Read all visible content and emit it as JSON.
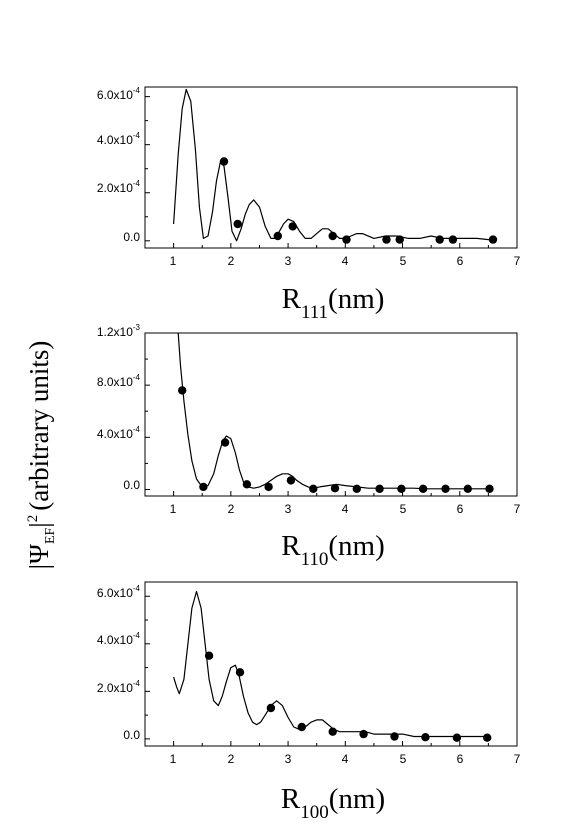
{
  "ylabel": {
    "psi_symbol": "Ψ",
    "subscript": "EF",
    "power": "2",
    "units": "(arbitrary units)"
  },
  "chart_data": [
    {
      "type": "line",
      "panel": "111",
      "xlabel": {
        "main": "R",
        "subscript": "111",
        "units": "(nm)"
      },
      "xlim": [
        0.5,
        7
      ],
      "ylim": [
        -3e-05,
        0.00064
      ],
      "x_ticks": [
        1,
        2,
        3,
        4,
        5,
        6,
        7
      ],
      "x_tick_labels": [
        "1",
        "2",
        "3",
        "4",
        "5",
        "6",
        "7"
      ],
      "y_ticks": [
        0,
        0.0002,
        0.0004,
        0.0006
      ],
      "y_tick_labels": [
        {
          "mantissa": "0.0",
          "exponent": ""
        },
        {
          "mantissa": "2.0x10",
          "exponent": "-4"
        },
        {
          "mantissa": "4.0x10",
          "exponent": "-4"
        },
        {
          "mantissa": "6.0x10",
          "exponent": "-4"
        }
      ],
      "series": [
        {
          "style": "line",
          "x": [
            1.0,
            1.08,
            1.15,
            1.22,
            1.3,
            1.38,
            1.45,
            1.52,
            1.6,
            1.68,
            1.75,
            1.82,
            1.88,
            1.95,
            2.02,
            2.1,
            2.18,
            2.25,
            2.32,
            2.4,
            2.5,
            2.6,
            2.7,
            2.78,
            2.85,
            2.92,
            3.0,
            3.1,
            3.2,
            3.3,
            3.4,
            3.5,
            3.6,
            3.7,
            3.8,
            3.9,
            4.0,
            4.1,
            4.2,
            4.3,
            4.5,
            4.7,
            4.9,
            5.1,
            5.3,
            5.5,
            5.7,
            5.9,
            6.1,
            6.3,
            6.5,
            6.6
          ],
          "y": [
            7e-05,
            0.00036,
            0.00055,
            0.00063,
            0.00058,
            0.00038,
            0.00014,
            1e-05,
            2e-05,
            0.00012,
            0.00025,
            0.00033,
            0.00031,
            0.00018,
            4e-05,
            0.0,
            5e-05,
            0.00011,
            0.00015,
            0.00017,
            0.00014,
            6e-05,
            1e-05,
            1e-05,
            4e-05,
            7e-05,
            9e-05,
            8e-05,
            4e-05,
            1e-05,
            1e-05,
            3e-05,
            5e-05,
            5e-05,
            3e-05,
            1e-05,
            1e-05,
            2e-05,
            3e-05,
            3e-05,
            1e-05,
            2e-05,
            2e-05,
            1e-05,
            1e-05,
            2e-05,
            1e-05,
            1e-05,
            1e-05,
            1e-05,
            5e-06,
            5e-06
          ]
        },
        {
          "style": "markers",
          "x": [
            1.88,
            2.12,
            2.82,
            3.08,
            3.78,
            4.02,
            4.72,
            4.95,
            5.65,
            5.88,
            6.58
          ],
          "y": [
            0.00033,
            7e-05,
            2e-05,
            6e-05,
            2e-05,
            5e-06,
            5e-06,
            5e-06,
            5e-06,
            5e-06,
            5e-06
          ]
        }
      ]
    },
    {
      "type": "line",
      "panel": "110",
      "xlabel": {
        "main": "R",
        "subscript": "110",
        "units": "(nm)"
      },
      "xlim": [
        0.5,
        7
      ],
      "ylim": [
        -5e-05,
        0.0012
      ],
      "x_ticks": [
        1,
        2,
        3,
        4,
        5,
        6,
        7
      ],
      "x_tick_labels": [
        "1",
        "2",
        "3",
        "4",
        "5",
        "6",
        "7"
      ],
      "y_ticks": [
        0,
        0.0004,
        0.0008,
        0.0012
      ],
      "y_tick_labels": [
        {
          "mantissa": "0.0",
          "exponent": ""
        },
        {
          "mantissa": "4.0x10",
          "exponent": "-4"
        },
        {
          "mantissa": "8.0x10",
          "exponent": "-4"
        },
        {
          "mantissa": "1.2x10",
          "exponent": "-3"
        }
      ],
      "series": [
        {
          "style": "line",
          "x": [
            1.08,
            1.12,
            1.18,
            1.25,
            1.32,
            1.4,
            1.5,
            1.6,
            1.7,
            1.78,
            1.85,
            1.92,
            2.0,
            2.08,
            2.15,
            2.22,
            2.3,
            2.4,
            2.5,
            2.6,
            2.7,
            2.8,
            2.9,
            3.0,
            3.08,
            3.15,
            3.25,
            3.35,
            3.45,
            3.55,
            3.7,
            3.85,
            4.0,
            4.2,
            4.4,
            4.6,
            4.8,
            5.0,
            5.2,
            5.4,
            5.6,
            5.8,
            6.0,
            6.2,
            6.4,
            6.55
          ],
          "y": [
            0.0012,
            0.00095,
            0.00068,
            0.00042,
            0.00022,
            8e-05,
            2e-05,
            3e-05,
            0.00012,
            0.00026,
            0.00036,
            0.00041,
            0.00039,
            0.00028,
            0.00015,
            6e-05,
            2e-05,
            1e-05,
            2e-05,
            4e-05,
            7e-05,
            0.0001,
            0.00012,
            0.00012,
            0.0001,
            7e-05,
            4e-05,
            2e-05,
            1e-05,
            2e-05,
            3e-05,
            4e-05,
            3e-05,
            2e-05,
            1e-05,
            1e-05,
            1e-05,
            1e-05,
            1e-05,
            5e-06,
            5e-06,
            5e-06,
            5e-06,
            5e-06,
            5e-06,
            5e-06
          ]
        },
        {
          "style": "markers",
          "x": [
            1.15,
            1.52,
            1.9,
            2.28,
            2.66,
            3.05,
            3.44,
            3.82,
            4.2,
            4.6,
            4.98,
            5.36,
            5.75,
            6.14,
            6.52
          ],
          "y": [
            0.00076,
            2e-05,
            0.00036,
            4e-05,
            2e-05,
            7e-05,
            5e-06,
            1e-05,
            5e-06,
            5e-06,
            5e-06,
            5e-06,
            5e-06,
            5e-06,
            5e-06
          ]
        }
      ]
    },
    {
      "type": "line",
      "panel": "100",
      "xlabel": {
        "main": "R",
        "subscript": "100",
        "units": "(nm)"
      },
      "xlim": [
        0.5,
        7
      ],
      "ylim": [
        -3e-05,
        0.00066
      ],
      "x_ticks": [
        1,
        2,
        3,
        4,
        5,
        6,
        7
      ],
      "x_tick_labels": [
        "1",
        "2",
        "3",
        "4",
        "5",
        "6",
        "7"
      ],
      "y_ticks": [
        0,
        0.0002,
        0.0004,
        0.0006
      ],
      "y_tick_labels": [
        {
          "mantissa": "0.0",
          "exponent": ""
        },
        {
          "mantissa": "2.0x10",
          "exponent": "-4"
        },
        {
          "mantissa": "4.0x10",
          "exponent": "-4"
        },
        {
          "mantissa": "6.0x10",
          "exponent": "-4"
        }
      ],
      "series": [
        {
          "style": "line",
          "x": [
            1.0,
            1.05,
            1.1,
            1.18,
            1.25,
            1.32,
            1.4,
            1.48,
            1.55,
            1.62,
            1.7,
            1.78,
            1.85,
            1.92,
            2.0,
            2.08,
            2.15,
            2.22,
            2.3,
            2.38,
            2.45,
            2.52,
            2.6,
            2.7,
            2.8,
            2.9,
            3.0,
            3.1,
            3.2,
            3.3,
            3.4,
            3.5,
            3.6,
            3.7,
            3.8,
            3.9,
            4.0,
            4.1,
            4.2,
            4.35,
            4.5,
            4.65,
            4.8,
            5.0,
            5.2,
            5.4,
            5.6,
            5.8,
            6.0,
            6.2,
            6.4,
            6.5
          ],
          "y": [
            0.00026,
            0.00022,
            0.00019,
            0.00025,
            0.0004,
            0.00055,
            0.00062,
            0.00055,
            0.0004,
            0.00025,
            0.00016,
            0.00014,
            0.00018,
            0.00024,
            0.0003,
            0.00031,
            0.00026,
            0.00018,
            0.00011,
            7e-05,
            6e-05,
            7e-05,
            0.0001,
            0.00014,
            0.00016,
            0.00014,
            9e-05,
            5e-05,
            4e-05,
            5e-05,
            7e-05,
            8e-05,
            8e-05,
            6e-05,
            4e-05,
            3e-05,
            3e-05,
            3e-05,
            3e-05,
            3e-05,
            2e-05,
            2e-05,
            2e-05,
            2e-05,
            1e-05,
            1e-05,
            1e-05,
            1e-05,
            1e-05,
            1e-05,
            1e-05,
            1e-05
          ]
        },
        {
          "style": "markers",
          "x": [
            1.62,
            2.16,
            2.7,
            3.24,
            3.78,
            4.32,
            4.86,
            5.4,
            5.95,
            6.48
          ],
          "y": [
            0.00035,
            0.00028,
            0.00013,
            5e-05,
            3e-05,
            2e-05,
            1e-05,
            7e-06,
            5e-06,
            5e-06
          ]
        }
      ]
    }
  ]
}
